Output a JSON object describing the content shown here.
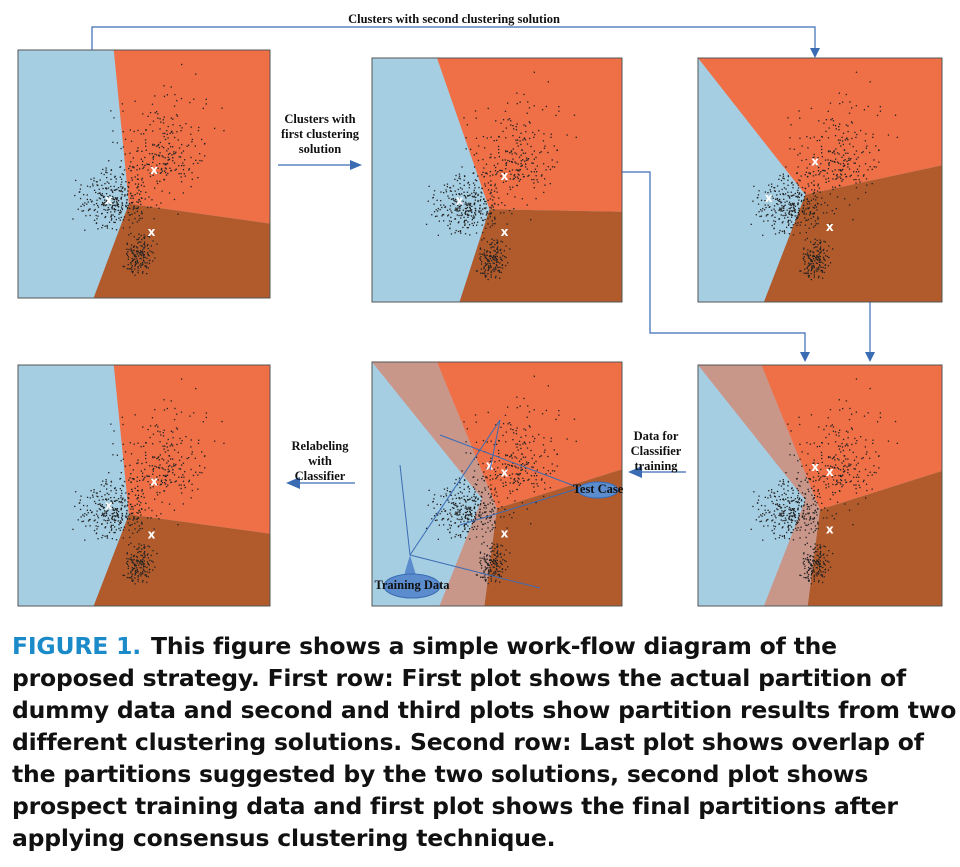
{
  "labels": {
    "top_connector": "Clusters with second clustering solution",
    "first_solution": [
      "Clusters with",
      "first clustering",
      "solution"
    ],
    "classifier_training": [
      "Data for",
      "Classifier",
      "training"
    ],
    "relabeling": [
      "Relabeling",
      "with",
      "Classifier"
    ],
    "test_case": "Test Case",
    "training_data": "Training Data"
  },
  "caption": {
    "figure_label": "FIGURE 1.",
    "text": "This figure shows a simple work-flow diagram of the proposed strategy. First row: First plot shows the actual partition of dummy data and second and third plots show partition results from two different clustering solutions. Second row: Last plot shows overlap of the partitions suggested by the two solutions, second plot shows prospect training data and first plot shows the final partitions after applying consensus clustering technique."
  },
  "panel_marker": "x",
  "colors": {
    "blue_region": "#a6cee3",
    "red_region": "#ef6f47",
    "brown_region": "#b15a2c",
    "overlap_region": "#c9968a",
    "arrow": "#3a6cb4",
    "figure_label": "#1b8ac8"
  }
}
